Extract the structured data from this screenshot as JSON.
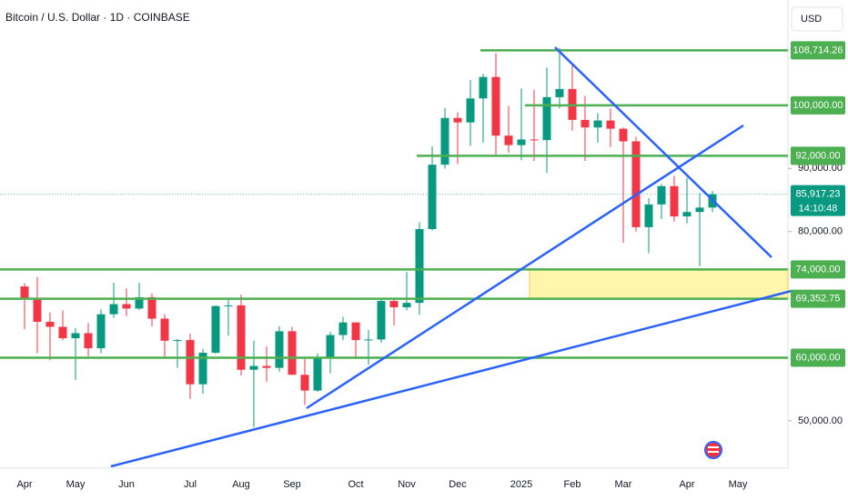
{
  "chart_data": {
    "type": "candlestick",
    "title": "Bitcoin / U.S. Dollar · 1D · COINBASE",
    "currency": "USD",
    "categories": [
      "Apr",
      null,
      null,
      null,
      "May",
      null,
      null,
      null,
      "Jun",
      null,
      null,
      null,
      null,
      "Jul",
      null,
      null,
      null,
      "Aug",
      null,
      null,
      null,
      "Sep",
      null,
      null,
      null,
      null,
      "Oct",
      null,
      null,
      null,
      "Nov",
      null,
      null,
      null,
      "Dec",
      null,
      null,
      null,
      null,
      "2025",
      null,
      null,
      null,
      "Feb",
      null,
      null,
      null,
      "Mar",
      null,
      null,
      null,
      null,
      "Apr",
      null,
      null,
      null,
      "May",
      null,
      null
    ],
    "open": [
      71300,
      69400,
      65700,
      64900,
      63100,
      63900,
      61500,
      66900,
      68500,
      67800,
      69600,
      66200,
      62700,
      62800,
      55800,
      60800,
      68200,
      68300,
      58100,
      58700,
      58400,
      64200,
      57300,
      54800,
      60000,
      63600,
      65600,
      62800,
      62900,
      69000,
      68000,
      68700,
      80400,
      90600,
      98000,
      97300,
      101100,
      104500,
      95200,
      93700,
      94600,
      94500,
      101300,
      102600,
      97700,
      96500,
      97600,
      96300,
      94300,
      80700,
      84300,
      87200,
      82400,
      83100,
      83800,
      null,
      null,
      null,
      null
    ],
    "high": [
      71800,
      72800,
      67200,
      67500,
      64700,
      65500,
      67700,
      71900,
      71000,
      71900,
      70200,
      66900,
      63000,
      63800,
      61400,
      68300,
      69400,
      70000,
      62700,
      61800,
      65000,
      64900,
      59800,
      60700,
      64100,
      66500,
      65600,
      64400,
      69400,
      69500,
      73600,
      81500,
      93500,
      99600,
      98900,
      104000,
      105000,
      108300,
      99900,
      102700,
      102500,
      106000,
      109100,
      106400,
      101500,
      98800,
      99500,
      96500,
      95000,
      85300,
      87500,
      88800,
      88500,
      86100,
      86400,
      null,
      null,
      null,
      null
    ],
    "low": [
      64500,
      60700,
      59600,
      62800,
      56500,
      60200,
      60700,
      66300,
      66600,
      67600,
      65000,
      60000,
      58400,
      53500,
      54300,
      60600,
      63500,
      57200,
      49000,
      56200,
      57800,
      57300,
      52500,
      54600,
      57500,
      62800,
      59800,
      58900,
      62400,
      65100,
      67500,
      66800,
      80200,
      90000,
      90700,
      93600,
      94100,
      92200,
      92500,
      91300,
      91200,
      89300,
      99500,
      96000,
      91200,
      94100,
      93400,
      78200,
      80000,
      76600,
      82000,
      81600,
      81300,
      74500,
      83100,
      null,
      null,
      null,
      null
    ],
    "close": [
      69400,
      65700,
      64900,
      63100,
      63900,
      61500,
      66900,
      68500,
      67800,
      69600,
      66200,
      62700,
      62800,
      55800,
      60800,
      68200,
      68300,
      58100,
      58700,
      58400,
      64200,
      57300,
      54800,
      60000,
      63600,
      65600,
      62800,
      62900,
      69000,
      68000,
      68700,
      80400,
      90600,
      98000,
      97300,
      101100,
      104500,
      95200,
      93700,
      94600,
      94500,
      101300,
      102600,
      97700,
      96500,
      97600,
      96300,
      94300,
      80700,
      84300,
      87200,
      82400,
      83100,
      83800,
      85917.23,
      null,
      null,
      null,
      null
    ],
    "up_color": "#089981",
    "down_color": "#f23645",
    "ylim": [
      42500,
      116700
    ],
    "yticks": [
      {
        "value": 50000,
        "label": "50,000.00"
      },
      {
        "value": 80000,
        "label": "80,000.00"
      },
      {
        "value": 90000,
        "label": "90,000.00"
      }
    ],
    "levels": [
      {
        "value": 108714.26,
        "label": "108,714.26"
      },
      {
        "value": 100000,
        "label": "100,000.00"
      },
      {
        "value": 92000,
        "label": "92,000.00"
      },
      {
        "value": 74000,
        "label": "74,000.00"
      },
      {
        "value": 69352.75,
        "label": "69,352.75"
      },
      {
        "value": 60000,
        "label": "60,000.00"
      }
    ],
    "level_color": "#4caf50",
    "last_price": {
      "value": 85917.23,
      "label": "85,917.23"
    },
    "countdown": "14:10:48"
  }
}
